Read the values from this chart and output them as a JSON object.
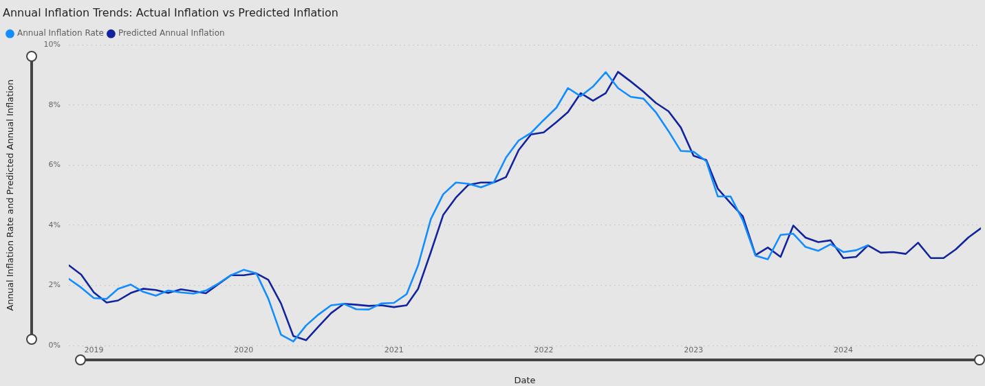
{
  "chart_data": {
    "type": "line",
    "title": "Annual Inflation Trends: Actual Inflation vs Predicted Inflation",
    "xlabel": "Date",
    "ylabel": "Annual Inflation Rate and Predicted Annual Inflation",
    "x": [
      "2018-11",
      "2018-12",
      "2019-01",
      "2019-02",
      "2019-03",
      "2019-04",
      "2019-05",
      "2019-06",
      "2019-07",
      "2019-08",
      "2019-09",
      "2019-10",
      "2019-11",
      "2019-12",
      "2020-01",
      "2020-02",
      "2020-03",
      "2020-04",
      "2020-05",
      "2020-06",
      "2020-07",
      "2020-08",
      "2020-09",
      "2020-10",
      "2020-11",
      "2020-12",
      "2021-01",
      "2021-02",
      "2021-03",
      "2021-04",
      "2021-05",
      "2021-06",
      "2021-07",
      "2021-08",
      "2021-09",
      "2021-10",
      "2021-11",
      "2021-12",
      "2022-01",
      "2022-02",
      "2022-03",
      "2022-04",
      "2022-05",
      "2022-06",
      "2022-07",
      "2022-08",
      "2022-09",
      "2022-10",
      "2022-11",
      "2022-12",
      "2023-01",
      "2023-02",
      "2023-03",
      "2023-04",
      "2023-05",
      "2023-06",
      "2023-07",
      "2023-08",
      "2023-09",
      "2023-10",
      "2023-11",
      "2023-12",
      "2024-01",
      "2024-02",
      "2024-03",
      "2024-04",
      "2024-05",
      "2024-06",
      "2024-07",
      "2024-08",
      "2024-09",
      "2024-10",
      "2024-11",
      "2024-12"
    ],
    "series": [
      {
        "name": "Annual Inflation Rate",
        "color": "#118dff",
        "values": [
          2.22,
          1.93,
          1.58,
          1.55,
          1.89,
          2.03,
          1.79,
          1.66,
          1.83,
          1.77,
          1.73,
          1.83,
          2.07,
          2.34,
          2.52,
          2.4,
          1.56,
          0.36,
          0.14,
          0.67,
          1.03,
          1.34,
          1.39,
          1.21,
          1.2,
          1.4,
          1.42,
          1.71,
          2.67,
          4.21,
          5.03,
          5.42,
          5.38,
          5.26,
          5.42,
          6.25,
          6.82,
          7.07,
          7.5,
          7.91,
          8.56,
          8.29,
          8.61,
          9.09,
          8.56,
          8.27,
          8.21,
          7.76,
          7.13,
          6.47,
          6.45,
          6.13,
          4.96,
          4.96,
          4.17,
          2.99,
          2.87,
          3.68,
          3.72,
          3.28,
          3.15,
          3.37,
          3.11,
          3.17,
          3.34,
          null,
          null,
          null,
          null,
          null,
          null,
          null,
          null,
          null
        ]
      },
      {
        "name": "Predicted Annual Inflation",
        "color": "#12239e",
        "values": [
          2.67,
          2.36,
          1.77,
          1.43,
          1.5,
          1.75,
          1.89,
          1.85,
          1.75,
          1.87,
          1.81,
          1.74,
          2.05,
          2.34,
          2.34,
          2.4,
          2.19,
          1.4,
          0.32,
          0.18,
          0.63,
          1.08,
          1.39,
          1.36,
          1.32,
          1.34,
          1.28,
          1.34,
          1.89,
          3.11,
          4.34,
          4.92,
          5.34,
          5.42,
          5.42,
          5.6,
          6.5,
          7.02,
          7.09,
          7.43,
          7.76,
          8.39,
          8.14,
          8.39,
          9.1,
          8.78,
          8.44,
          8.07,
          7.79,
          7.25,
          6.31,
          6.17,
          5.22,
          4.74,
          4.3,
          3.01,
          3.26,
          2.95,
          3.99,
          3.59,
          3.44,
          3.5,
          2.91,
          2.95,
          3.33,
          3.09,
          3.11,
          3.05,
          3.42,
          2.91,
          2.91,
          3.2,
          3.6,
          3.9
        ]
      }
    ],
    "xlim": [
      "2018-11",
      "2024-12"
    ],
    "xticks": [
      "2019",
      "2020",
      "2021",
      "2022",
      "2023",
      "2024"
    ],
    "ylim": [
      0,
      10
    ],
    "yticks": [
      {
        "value": 0,
        "label": "0%"
      },
      {
        "value": 2,
        "label": "2%"
      },
      {
        "value": 4,
        "label": "4%"
      },
      {
        "value": 6,
        "label": "6%"
      },
      {
        "value": 8,
        "label": "8%"
      },
      {
        "value": 10,
        "label": "10%"
      }
    ],
    "grid": "y",
    "legend": "top left",
    "marker": "none",
    "line_style": "solid"
  }
}
